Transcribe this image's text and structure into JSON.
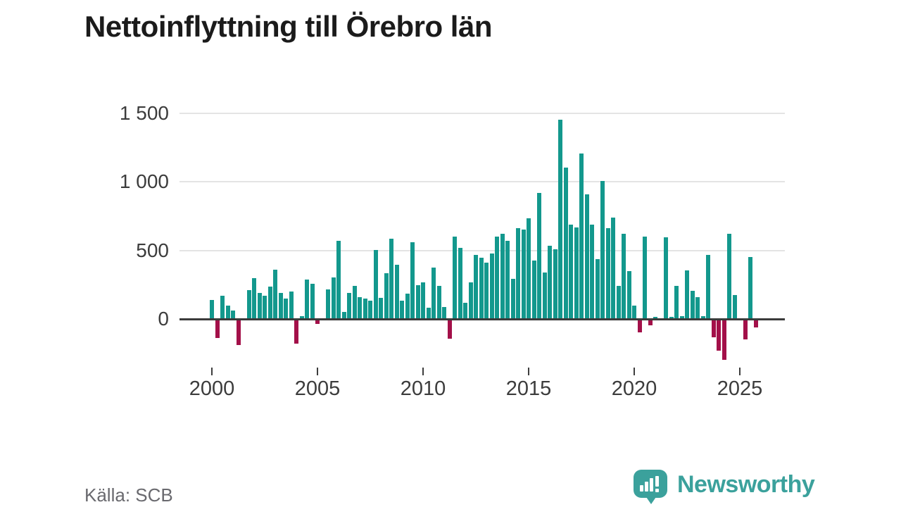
{
  "header": {
    "title": "Nettoinflyttning till Örebro län"
  },
  "footer": {
    "source": "Källa: SCB",
    "brand_name": "Newsworthy"
  },
  "chart_data": {
    "type": "bar",
    "title": "Nettoinflyttning till Örebro län",
    "xlabel": "",
    "ylabel": "",
    "frequency": "quarterly",
    "start_period": "2000-Q1",
    "end_period": "2025-Q4",
    "values": [
      140,
      -140,
      170,
      100,
      60,
      -190,
      0,
      210,
      300,
      190,
      170,
      235,
      360,
      190,
      150,
      200,
      -180,
      20,
      290,
      255,
      -35,
      -10,
      215,
      305,
      570,
      50,
      190,
      240,
      160,
      150,
      135,
      505,
      155,
      335,
      585,
      395,
      135,
      185,
      560,
      245,
      265,
      80,
      375,
      240,
      85,
      -145,
      600,
      520,
      120,
      265,
      465,
      445,
      410,
      475,
      600,
      620,
      570,
      295,
      660,
      650,
      735,
      425,
      920,
      340,
      535,
      510,
      1455,
      1105,
      690,
      665,
      1205,
      910,
      690,
      435,
      1005,
      660,
      740,
      240,
      620,
      350,
      100,
      -100,
      600,
      -45,
      15,
      0,
      595,
      15,
      240,
      20,
      355,
      205,
      160,
      20,
      465,
      -135,
      -230,
      -300,
      620,
      175,
      0,
      -150,
      450,
      -60
    ],
    "x_tick_years": [
      2000,
      2005,
      2010,
      2015,
      2020,
      2025
    ],
    "y_ticks": [
      {
        "value": 0,
        "label": "0"
      },
      {
        "value": 500,
        "label": "500"
      },
      {
        "value": 1000,
        "label": "1 000"
      },
      {
        "value": 1500,
        "label": "1 500"
      }
    ],
    "ylim": [
      -320,
      1560
    ],
    "grid": true,
    "legend": false,
    "positive_color": "#13988d",
    "negative_color": "#a31049",
    "source": "Källa: SCB"
  }
}
